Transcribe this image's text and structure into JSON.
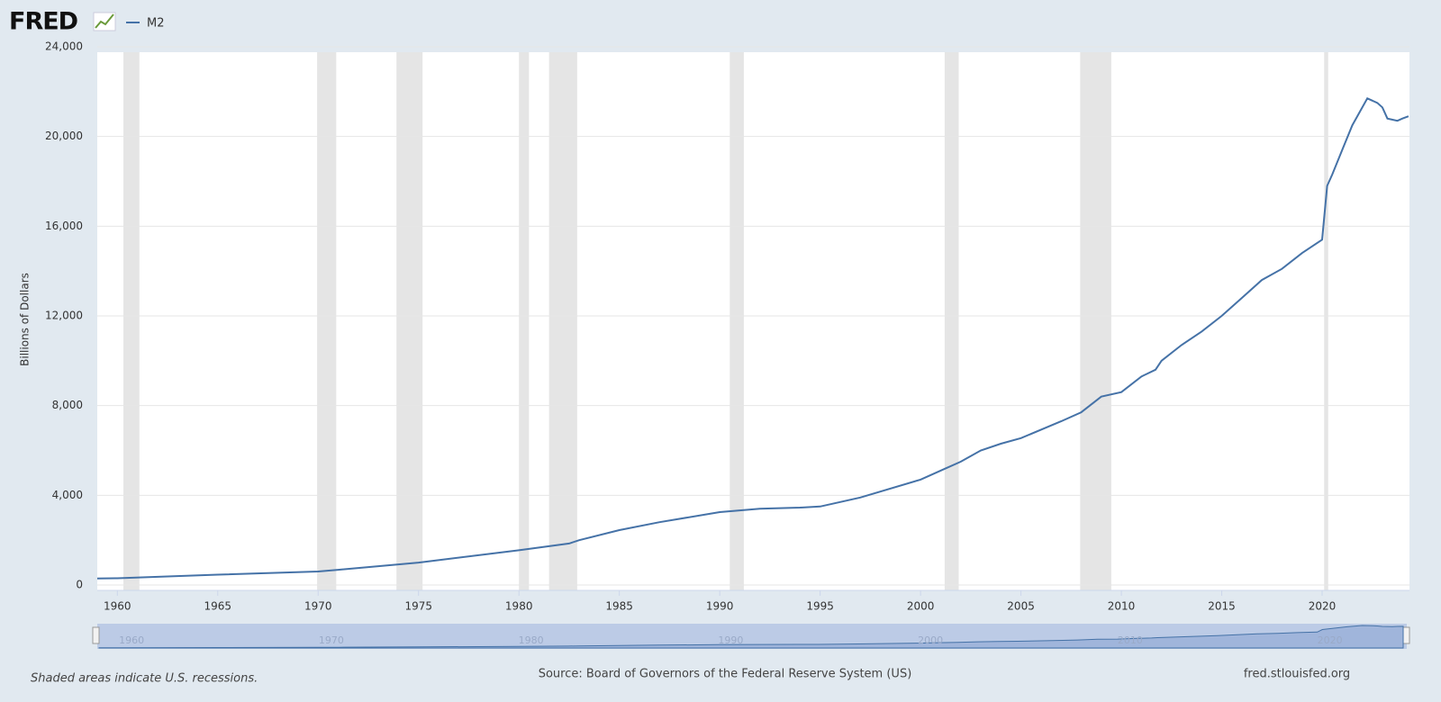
{
  "chart_data": {
    "type": "line",
    "logo": "FRED",
    "y_label": "Billions of Dollars",
    "note": "Shaded areas indicate U.S. recessions.",
    "source": "Source: Board of Governors of the Federal Reserve System (US)",
    "site": "fred.stlouisfed.org",
    "x": [
      1959,
      1960,
      1965,
      1970,
      1971,
      1975,
      1980,
      1982.5,
      1983,
      1985,
      1987,
      1990,
      1992,
      1994,
      1995,
      1997,
      2000,
      2001,
      2002,
      2003,
      2004,
      2005,
      2007,
      2008,
      2009,
      2010,
      2011,
      2011.7,
      2012,
      2013,
      2014,
      2015,
      2016,
      2017,
      2018,
      2019,
      2020,
      2020.25,
      2020.5,
      2021,
      2021.5,
      2022.25,
      2022.75,
      2023,
      2023.25,
      2023.75,
      2024,
      2024.3
    ],
    "series": [
      {
        "name": "M2",
        "color": "#4572a7",
        "values": [
          287,
          300,
          460,
          600,
          680,
          1000,
          1550,
          1850,
          2000,
          2450,
          2800,
          3250,
          3400,
          3450,
          3500,
          3900,
          4700,
          5100,
          5500,
          6000,
          6300,
          6550,
          7300,
          7700,
          8400,
          8600,
          9300,
          9600,
          10000,
          10700,
          11300,
          12000,
          12800,
          13600,
          14100,
          14800,
          15400,
          17800,
          18300,
          19400,
          20500,
          21700,
          21500,
          21300,
          20800,
          20700,
          20800,
          20900
        ]
      }
    ],
    "recessions": [
      [
        1960.3,
        1961.1
      ],
      [
        1969.95,
        1970.9
      ],
      [
        1973.9,
        1975.2
      ],
      [
        1980.0,
        1980.5
      ],
      [
        1981.5,
        1982.9
      ],
      [
        1990.5,
        1991.2
      ],
      [
        2001.2,
        2001.9
      ],
      [
        2007.95,
        2009.5
      ],
      [
        2020.1,
        2020.3
      ]
    ],
    "xlim": [
      1959,
      2024.35
    ],
    "xticks": [
      1960,
      1965,
      1970,
      1975,
      1980,
      1985,
      1990,
      1995,
      2000,
      2005,
      2010,
      2015,
      2020
    ],
    "ylim": [
      0,
      24000
    ],
    "yticks": [
      0,
      {
        "value": 4000,
        "label": "4,000"
      },
      {
        "value": 8000,
        "label": "8,000"
      },
      {
        "value": 12000,
        "label": "12,000"
      },
      {
        "value": 16000,
        "label": "16,000"
      },
      {
        "value": 20000,
        "label": "20,000"
      },
      {
        "value": 24000,
        "label": "24,000"
      }
    ],
    "navigator_ticks": [
      1960,
      1970,
      1980,
      1990,
      2000,
      2010,
      2020
    ],
    "grid": true
  }
}
